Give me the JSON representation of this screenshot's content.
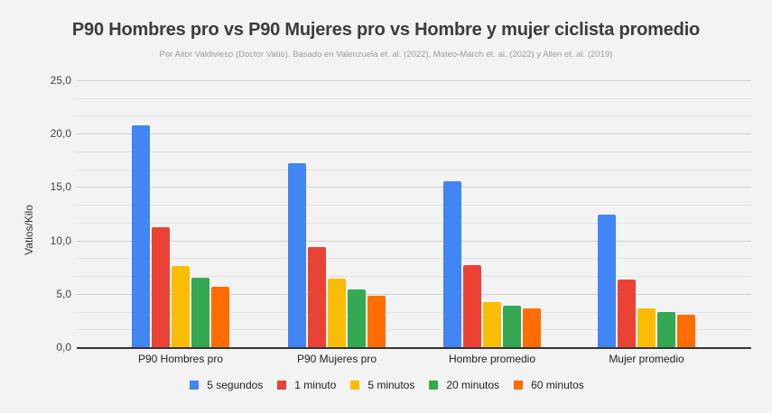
{
  "chart_data": {
    "type": "bar",
    "title": "P90 Hombres pro vs P90 Mujeres pro vs Hombre y mujer ciclista promedio",
    "subtitle": "Por Aitor Valdivieso (Doctor Vatio). Basado en Valenzuela et. al. (2022), Mateo-March et. al. (2022) y Allen et. al. (2019)",
    "xlabel": "",
    "ylabel": "Vatios/Kilo",
    "ylim": [
      0,
      25
    ],
    "yticks": [
      "0,0",
      "5,0",
      "10,0",
      "15,0",
      "20,0",
      "25,0"
    ],
    "grid": true,
    "legend_position": "bottom",
    "categories": [
      "P90 Hombres pro",
      "P90 Mujeres pro",
      "Hombre promedio",
      "Mujer promedio"
    ],
    "series": [
      {
        "name": "5 segundos",
        "color": "#4285F4",
        "values": [
          20.8,
          17.2,
          15.5,
          12.4
        ]
      },
      {
        "name": "1 minuto",
        "color": "#EA4335",
        "values": [
          11.2,
          9.4,
          7.7,
          6.3
        ]
      },
      {
        "name": "5 minutos",
        "color": "#FBBC04",
        "values": [
          7.6,
          6.4,
          4.2,
          3.6
        ]
      },
      {
        "name": "20 minutos",
        "color": "#34A853",
        "values": [
          6.5,
          5.4,
          3.9,
          3.3
        ]
      },
      {
        "name": "60 minutos",
        "color": "#FF6D01",
        "values": [
          5.7,
          4.8,
          3.6,
          3.0
        ]
      }
    ]
  }
}
